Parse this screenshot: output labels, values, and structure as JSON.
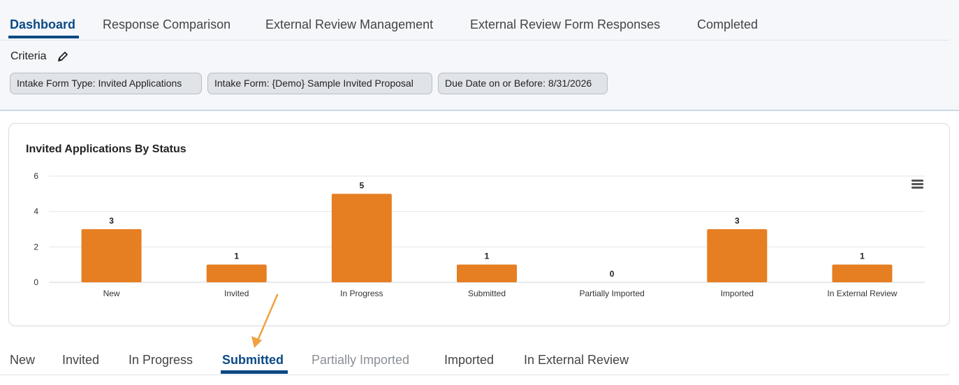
{
  "top_tabs": [
    {
      "label": "Dashboard",
      "active": true
    },
    {
      "label": "Response Comparison",
      "active": false
    },
    {
      "label": "External Review Management",
      "active": false
    },
    {
      "label": "External Review Form Responses",
      "active": false
    },
    {
      "label": "Completed",
      "active": false
    }
  ],
  "criteria": {
    "label": "Criteria",
    "chips": [
      "Intake Form Type: Invited Applications",
      "Intake Form: {Demo} Sample Invited Proposal",
      "Due Date on or Before: 8/31/2026"
    ]
  },
  "chart_data": {
    "type": "bar",
    "title": "Invited Applications By Status",
    "categories": [
      "New",
      "Invited",
      "In Progress",
      "Submitted",
      "Partially Imported",
      "Imported",
      "In External Review"
    ],
    "values": [
      3,
      1,
      5,
      1,
      0,
      3,
      1
    ],
    "ylim": [
      0,
      6
    ],
    "yticks": [
      0,
      2,
      4,
      6
    ],
    "grid": true,
    "bar_color": "#e67e22",
    "data_labels": true
  },
  "status_tabs": [
    {
      "label": "New",
      "state": "normal"
    },
    {
      "label": "Invited",
      "state": "normal"
    },
    {
      "label": "In Progress",
      "state": "normal"
    },
    {
      "label": "Submitted",
      "state": "active"
    },
    {
      "label": "Partially Imported",
      "state": "disabled"
    },
    {
      "label": "Imported",
      "state": "normal"
    },
    {
      "label": "In External Review",
      "state": "normal"
    }
  ],
  "colors": {
    "accent": "#0b4a84",
    "bar": "#e67e22",
    "annotation_arrow": "#f0a040"
  },
  "icons": {
    "criteria_edit": "pencil-icon",
    "chart_menu": "hamburger-menu-icon"
  }
}
